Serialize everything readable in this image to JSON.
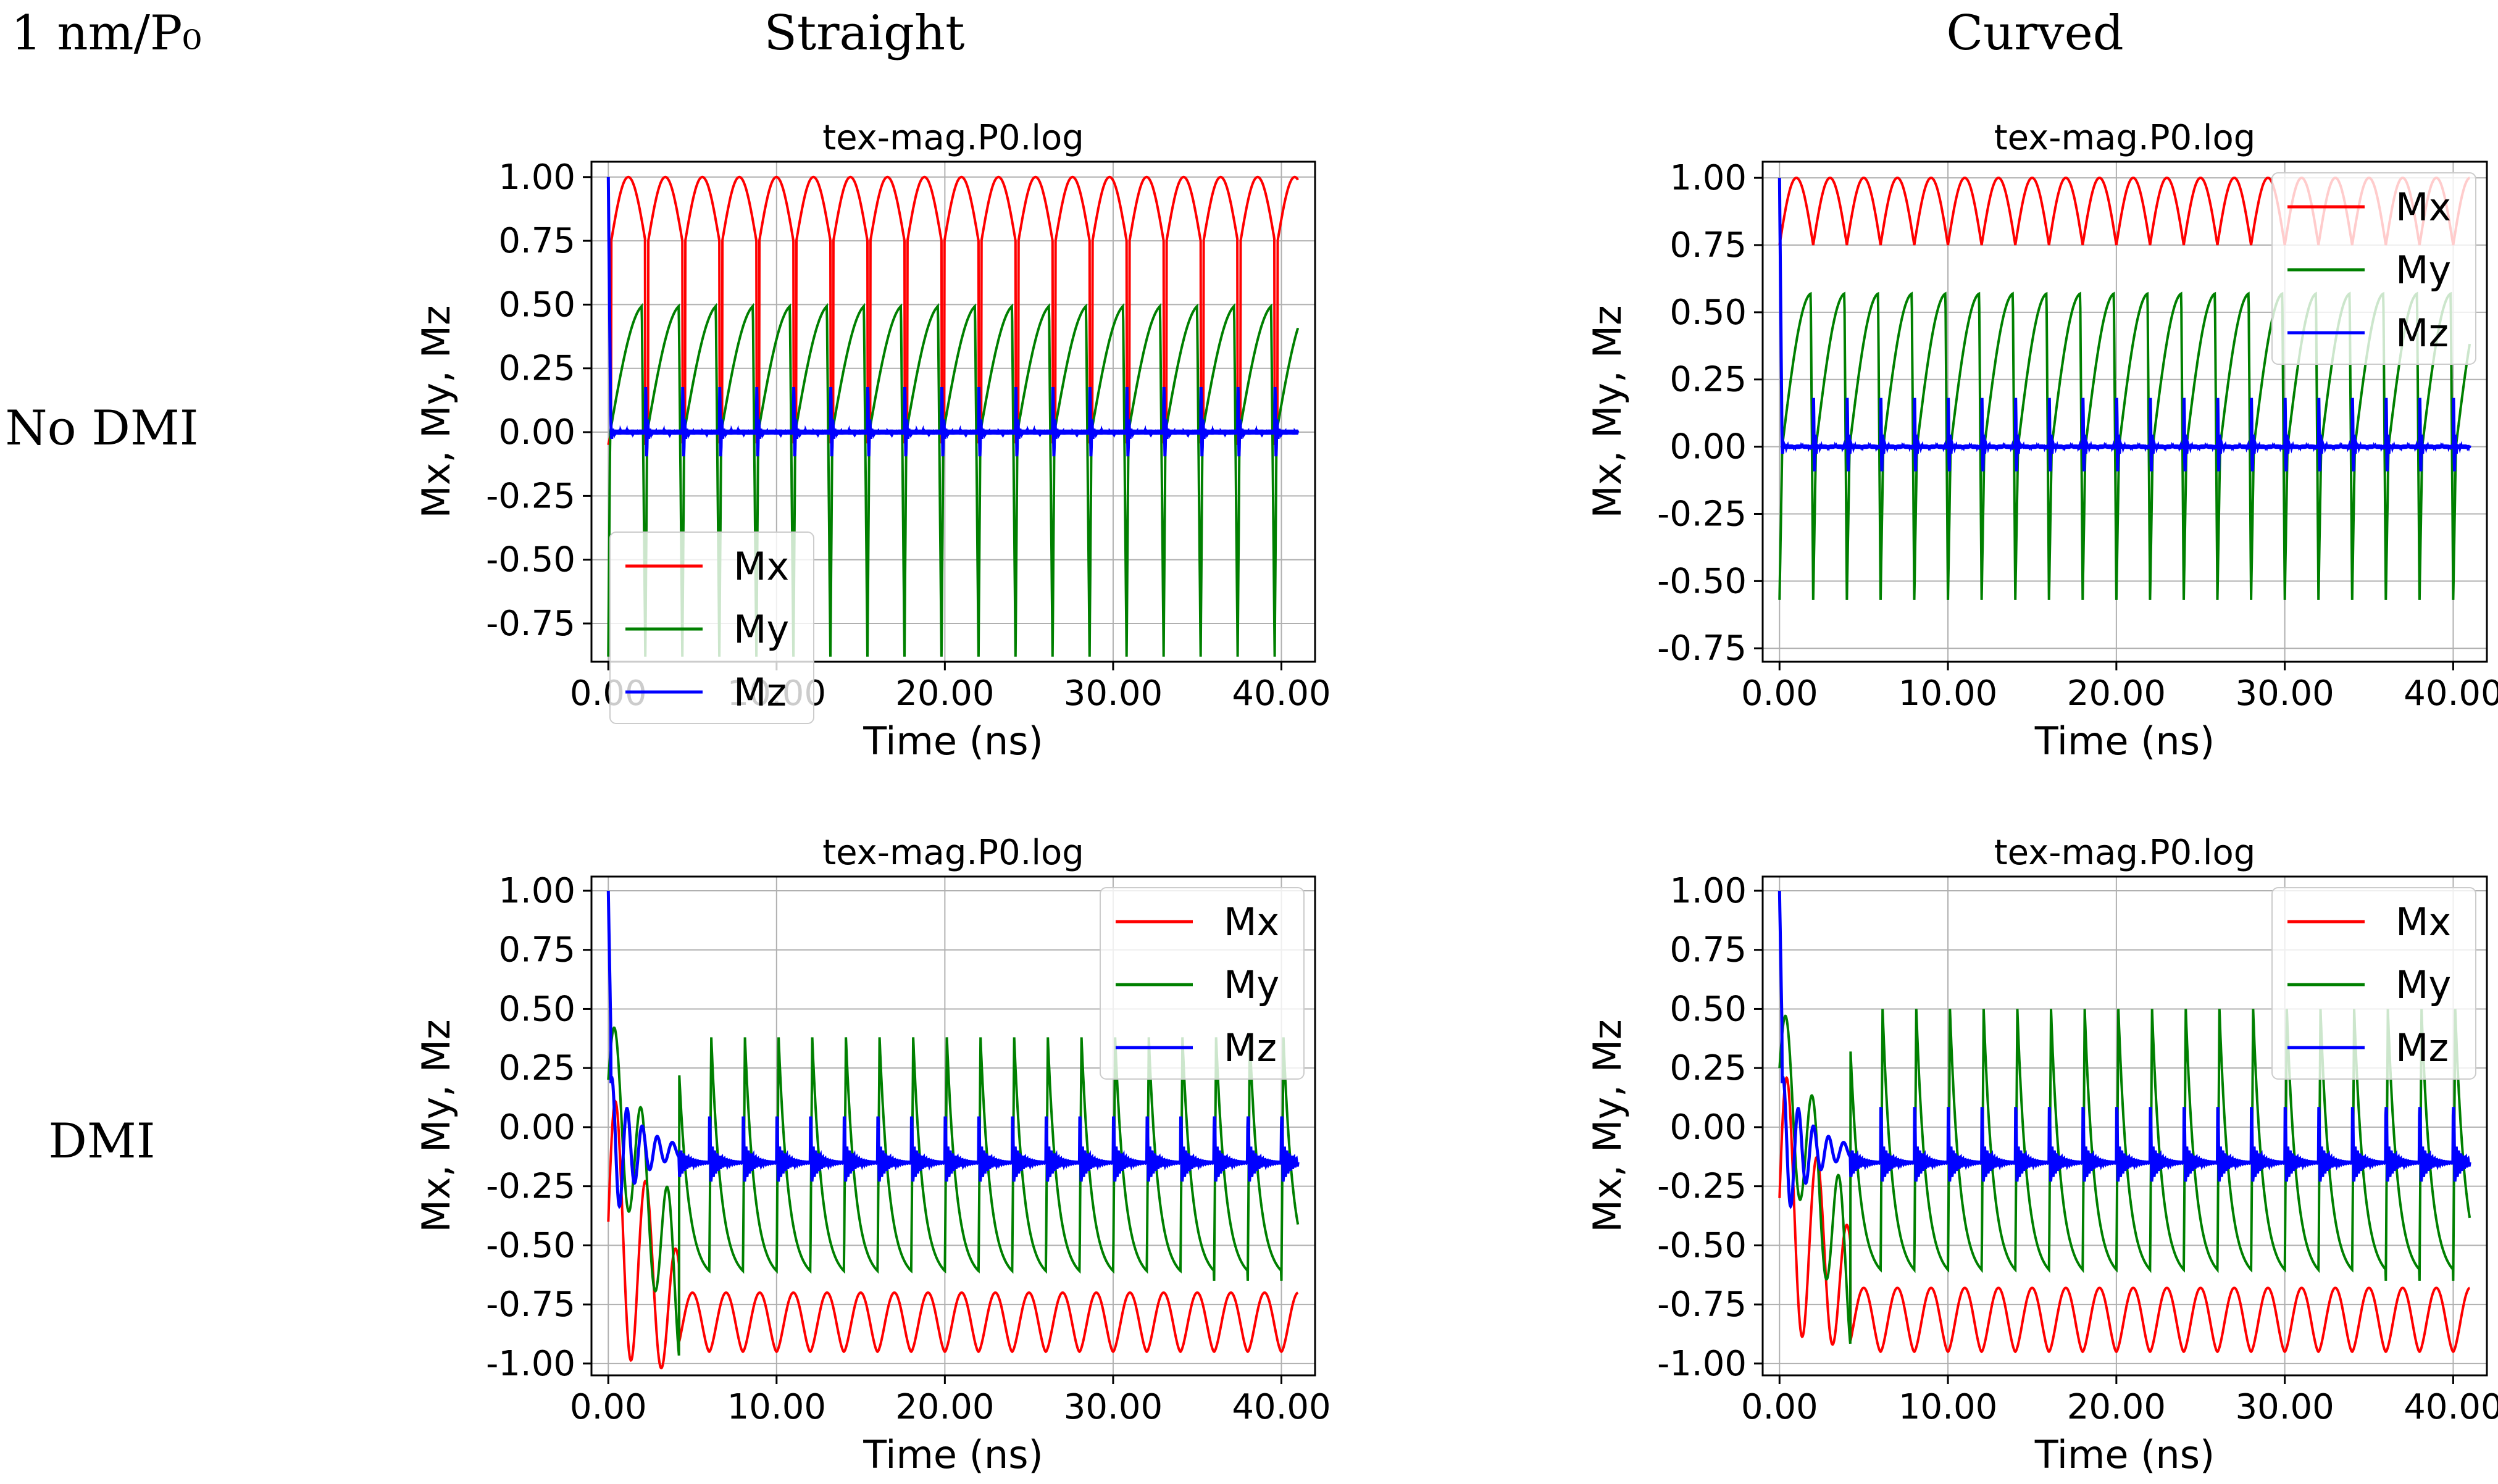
{
  "figure": {
    "corner_label": "1 nm/P₀",
    "column_labels": [
      "Straight",
      "Curved"
    ],
    "row_labels": [
      "No DMI",
      "DMI"
    ]
  },
  "colors": {
    "Mx": "#ff0000",
    "My": "#008000",
    "Mz": "#0000ff",
    "grid": "#b0b0b0"
  },
  "chart_data": [
    {
      "panel": "No DMI / Straight",
      "type": "line",
      "title": "tex-mag.P0.log",
      "xlabel": "Time (ns)",
      "ylabel": "Mx, My, Mz",
      "xlim": [
        -1,
        42
      ],
      "ylim": [
        -0.9,
        1.06
      ],
      "xticks": [
        0,
        10,
        20,
        30,
        40
      ],
      "xtick_labels": [
        "0.00",
        "10.00",
        "20.00",
        "30.00",
        "40.00"
      ],
      "yticks": [
        1.0,
        0.75,
        0.5,
        0.25,
        0.0,
        -0.25,
        -0.5,
        -0.75
      ],
      "ytick_labels": [
        "1.00",
        "0.75",
        "0.50",
        "0.25",
        "0.00",
        "-0.25",
        "-0.50",
        "-0.75"
      ],
      "grid": true,
      "legend_position": "lower-left",
      "legend": [
        "Mx",
        "My",
        "Mz"
      ],
      "x_end": 41,
      "period_ns": 2.2,
      "series": [
        {
          "name": "Mx",
          "min": -0.05,
          "max": 1.0,
          "end_value": 0.82
        },
        {
          "name": "My",
          "min": -0.88,
          "max": 0.5,
          "end_value": 0.48
        },
        {
          "name": "Mz",
          "min": -0.25,
          "max": 0.25,
          "baseline": 0.0
        }
      ]
    },
    {
      "panel": "No DMI / Curved",
      "type": "line",
      "title": "tex-mag.P0.log",
      "xlabel": "Time (ns)",
      "ylabel": "Mx, My, Mz",
      "xlim": [
        -1,
        42
      ],
      "ylim": [
        -0.8,
        1.06
      ],
      "xticks": [
        0,
        10,
        20,
        30,
        40
      ],
      "xtick_labels": [
        "0.00",
        "10.00",
        "20.00",
        "30.00",
        "40.00"
      ],
      "yticks": [
        1.0,
        0.75,
        0.5,
        0.25,
        0.0,
        -0.25,
        -0.5,
        -0.75
      ],
      "ytick_labels": [
        "1.00",
        "0.75",
        "0.50",
        "0.25",
        "0.00",
        "-0.25",
        "-0.50",
        "-0.75"
      ],
      "grid": true,
      "legend_position": "upper-right",
      "legend": [
        "Mx",
        "My",
        "Mz"
      ],
      "x_end": 41,
      "period_ns": 2.0,
      "series": [
        {
          "name": "Mx",
          "min": 0.75,
          "max": 1.0
        },
        {
          "name": "My",
          "min": -0.57,
          "max": 0.57
        },
        {
          "name": "Mz",
          "min": -0.25,
          "max": 0.25,
          "baseline": 0.0
        }
      ]
    },
    {
      "panel": "DMI / Straight",
      "type": "line",
      "title": "tex-mag.P0.log",
      "xlabel": "Time (ns)",
      "ylabel": "Mx, My, Mz",
      "xlim": [
        -1,
        42
      ],
      "ylim": [
        -1.05,
        1.06
      ],
      "xticks": [
        0,
        10,
        20,
        30,
        40
      ],
      "xtick_labels": [
        "0.00",
        "10.00",
        "20.00",
        "30.00",
        "40.00"
      ],
      "yticks": [
        1.0,
        0.75,
        0.5,
        0.25,
        0.0,
        -0.25,
        -0.5,
        -0.75,
        -1.0
      ],
      "ytick_labels": [
        "1.00",
        "0.75",
        "0.50",
        "0.25",
        "0.00",
        "-0.25",
        "-0.50",
        "-0.75",
        "-1.00"
      ],
      "grid": true,
      "legend_position": "upper-right",
      "legend": [
        "Mx",
        "My",
        "Mz"
      ],
      "x_end": 41,
      "period_ns": 2.0,
      "series": [
        {
          "name": "Mx",
          "min": -0.95,
          "max": -0.7
        },
        {
          "name": "My",
          "min": -0.65,
          "max": 0.38
        },
        {
          "name": "Mz",
          "min": -0.28,
          "max": 0.0,
          "baseline": -0.15
        }
      ]
    },
    {
      "panel": "DMI / Curved",
      "type": "line",
      "title": "tex-mag.P0.log",
      "xlabel": "Time (ns)",
      "ylabel": "Mx, My, Mz",
      "xlim": [
        -1,
        42
      ],
      "ylim": [
        -1.05,
        1.06
      ],
      "xticks": [
        0,
        10,
        20,
        30,
        40
      ],
      "xtick_labels": [
        "0.00",
        "10.00",
        "20.00",
        "30.00",
        "40.00"
      ],
      "yticks": [
        1.0,
        0.75,
        0.5,
        0.25,
        0.0,
        -0.25,
        -0.5,
        -0.75,
        -1.0
      ],
      "ytick_labels": [
        "1.00",
        "0.75",
        "0.50",
        "0.25",
        "0.00",
        "-0.25",
        "-0.50",
        "-0.75",
        "-1.00"
      ],
      "grid": true,
      "legend_position": "upper-right",
      "legend": [
        "Mx",
        "My",
        "Mz"
      ],
      "x_end": 41,
      "period_ns": 2.0,
      "series": [
        {
          "name": "Mx",
          "min": -0.95,
          "max": -0.68
        },
        {
          "name": "My",
          "min": -0.65,
          "max": 0.5
        },
        {
          "name": "Mz",
          "min": -0.28,
          "max": 0.05,
          "baseline": -0.15
        }
      ]
    }
  ]
}
